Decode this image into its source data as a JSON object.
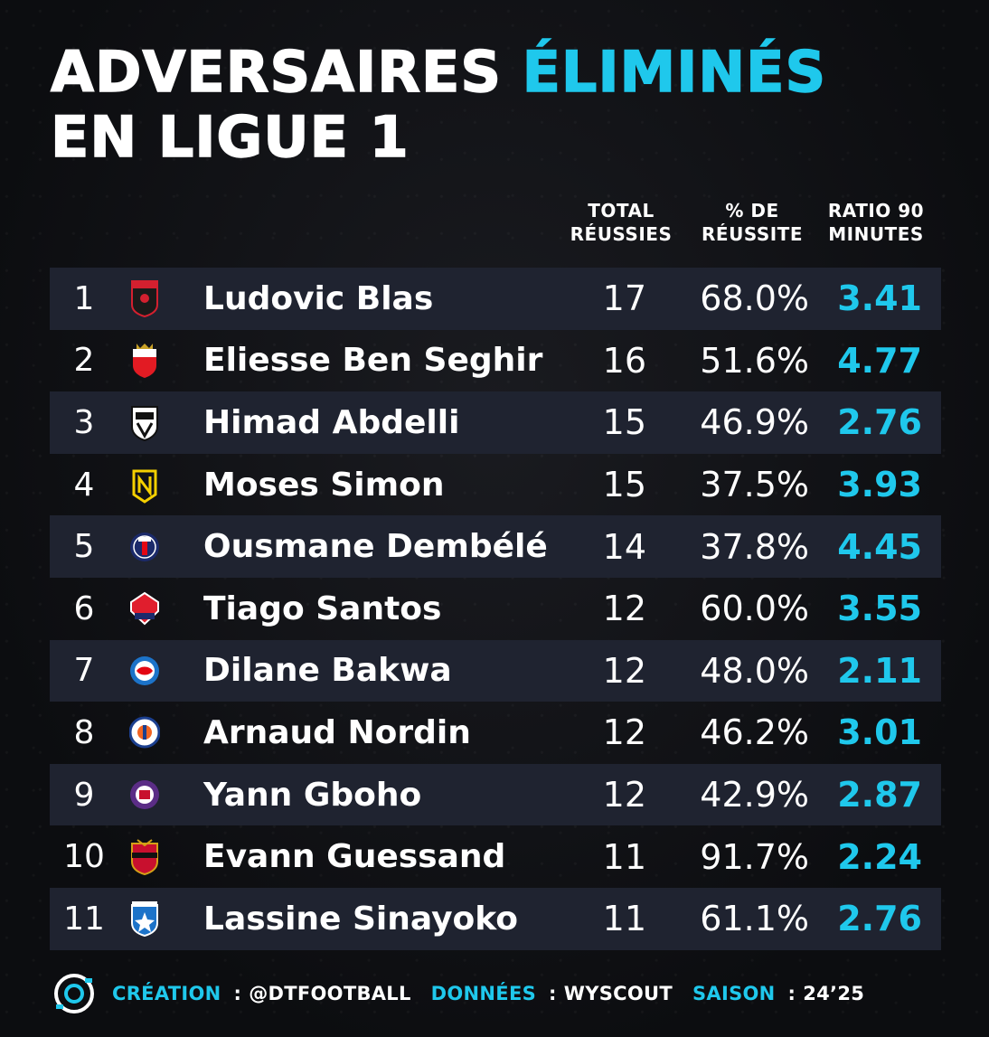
{
  "title": {
    "line1_plain": "ADVERSAIRES",
    "line1_accent": "ÉLIMINÉS",
    "line2": "EN LIGUE 1"
  },
  "columns": {
    "total": [
      "TOTAL",
      "RÉUSSIES"
    ],
    "pct": [
      "% DE",
      "RÉUSSITE"
    ],
    "ratio": [
      "RATIO 90",
      "MINUTES"
    ]
  },
  "rows": [
    {
      "rank": "1",
      "club": "rennes-crest-icon",
      "name": "Ludovic Blas",
      "total": "17",
      "pct": "68.0%",
      "ratio": "3.41"
    },
    {
      "rank": "2",
      "club": "monaco-crest-icon",
      "name": "Eliesse Ben Seghir",
      "total": "16",
      "pct": "51.6%",
      "ratio": "4.77"
    },
    {
      "rank": "3",
      "club": "angers-crest-icon",
      "name": "Himad Abdelli",
      "total": "15",
      "pct": "46.9%",
      "ratio": "2.76"
    },
    {
      "rank": "4",
      "club": "nantes-crest-icon",
      "name": "Moses Simon",
      "total": "15",
      "pct": "37.5%",
      "ratio": "3.93"
    },
    {
      "rank": "5",
      "club": "psg-crest-icon",
      "name": "Ousmane Dembélé",
      "total": "14",
      "pct": "37.8%",
      "ratio": "4.45"
    },
    {
      "rank": "6",
      "club": "lille-crest-icon",
      "name": "Tiago Santos",
      "total": "12",
      "pct": "60.0%",
      "ratio": "3.55"
    },
    {
      "rank": "7",
      "club": "strasbourg-crest-icon",
      "name": "Dilane Bakwa",
      "total": "12",
      "pct": "48.0%",
      "ratio": "2.11"
    },
    {
      "rank": "8",
      "club": "montpellier-crest-icon",
      "name": "Arnaud Nordin",
      "total": "12",
      "pct": "46.2%",
      "ratio": "3.01"
    },
    {
      "rank": "9",
      "club": "toulouse-crest-icon",
      "name": "Yann Gboho",
      "total": "12",
      "pct": "42.9%",
      "ratio": "2.87"
    },
    {
      "rank": "10",
      "club": "nice-crest-icon",
      "name": "Evann Guessand",
      "total": "11",
      "pct": "91.7%",
      "ratio": "2.24"
    },
    {
      "rank": "11",
      "club": "auxerre-crest-icon",
      "name": "Lassine Sinayoko",
      "total": "11",
      "pct": "61.1%",
      "ratio": "2.76"
    }
  ],
  "footer": {
    "creation_label": "CRÉATION",
    "creation_value": "@DTFOOTBALL",
    "data_label": "DONNÉES",
    "data_value": "WYSCOUT",
    "season_label": "SAISON",
    "season_value": "24’25",
    "separator": ":"
  },
  "colors": {
    "accent": "#1fc8ec",
    "background": "#0e0f12",
    "row_shade": "#1f2330",
    "text": "#ffffff"
  }
}
